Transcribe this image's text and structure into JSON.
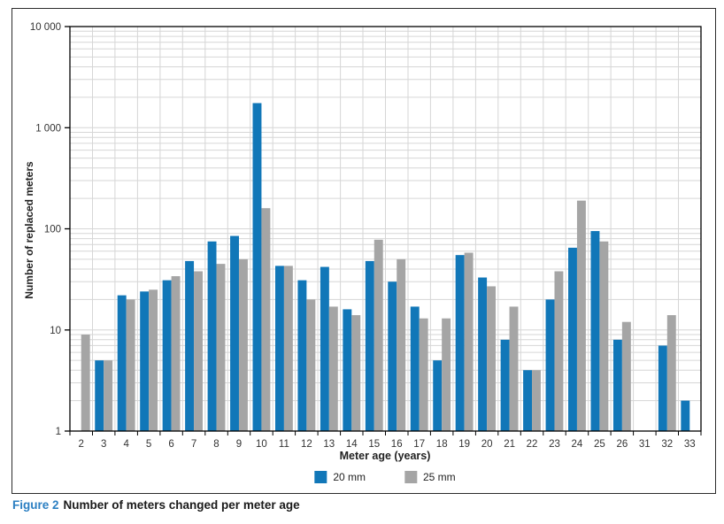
{
  "figure": {
    "caption_prefix": "Figure 2",
    "caption_text": "Number of meters changed per meter age"
  },
  "colors": {
    "series_20mm": "#1177b8",
    "series_25mm": "#a5a5a5",
    "gridline": "#d6d6d6",
    "axis": "#000000",
    "caption_accent": "#2b7fc2",
    "frame_border": "#2b2b2b"
  },
  "chart_data": {
    "type": "bar",
    "title": "",
    "xlabel": "Meter age (years)",
    "ylabel": "Number of replaced meters",
    "y_scale": "log",
    "ylim": [
      1,
      10000
    ],
    "grid": true,
    "legend_position": "bottom",
    "y_ticks": [
      {
        "value": 1,
        "label": "1"
      },
      {
        "value": 10,
        "label": "10"
      },
      {
        "value": 100,
        "label": "100"
      },
      {
        "value": 1000,
        "label": "1 000"
      },
      {
        "value": 10000,
        "label": "10 000"
      }
    ],
    "categories": [
      "2",
      "3",
      "4",
      "5",
      "6",
      "7",
      "8",
      "9",
      "10",
      "11",
      "12",
      "13",
      "14",
      "15",
      "16",
      "17",
      "18",
      "19",
      "20",
      "21",
      "22",
      "23",
      "24",
      "25",
      "26",
      "31",
      "32",
      "33"
    ],
    "series": [
      {
        "name": "20 mm",
        "color": "#1177b8",
        "values": [
          null,
          5,
          22,
          24,
          31,
          48,
          75,
          85,
          1750,
          43,
          31,
          42,
          16,
          48,
          30,
          17,
          5,
          55,
          33,
          8,
          4,
          20,
          65,
          95,
          8,
          null,
          7,
          2
        ]
      },
      {
        "name": "25 mm",
        "color": "#a5a5a5",
        "values": [
          9,
          5,
          20,
          25,
          34,
          38,
          45,
          50,
          160,
          43,
          20,
          17,
          14,
          78,
          50,
          13,
          13,
          58,
          27,
          17,
          4,
          38,
          190,
          75,
          12,
          null,
          14,
          null
        ]
      }
    ]
  }
}
